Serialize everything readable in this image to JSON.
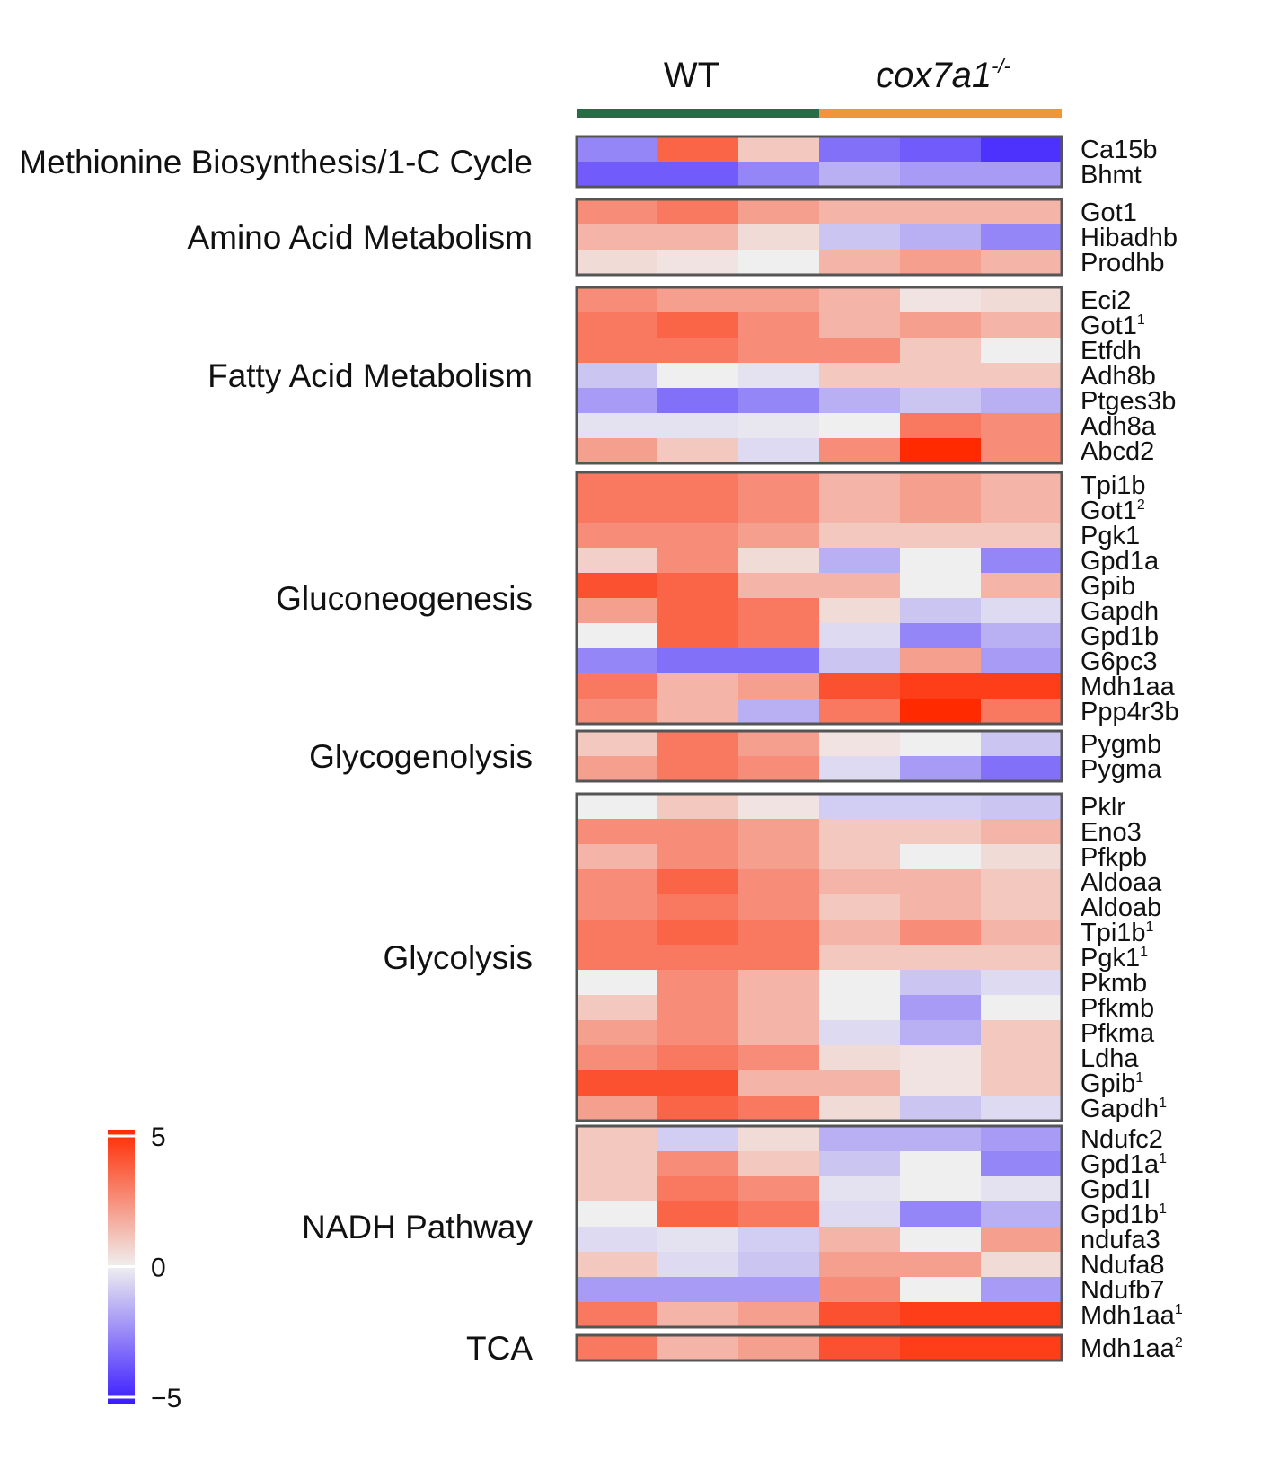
{
  "chart_data": {
    "type": "heatmap",
    "title": "",
    "groups": [
      {
        "label": "WT",
        "italic": false,
        "color": "#2a6b45",
        "columns": 3
      },
      {
        "label": "cox7a1",
        "superscript": "-/-",
        "italic": true,
        "color": "#f0963a",
        "columns": 3
      }
    ],
    "color_scale": {
      "min": -5,
      "mid": 0,
      "max": 5,
      "low_color": "#3b1cff",
      "mid_color": "#efefef",
      "high_color": "#ff2a00",
      "ticks": [
        "5",
        "0",
        "−5"
      ]
    },
    "sections": [
      {
        "name": "Methionine Biosynthesis/1-C Cycle",
        "rows": [
          {
            "gene": "Ca15b",
            "sup": "",
            "values": [
              -2.5,
              3.5,
              1,
              -3,
              -3.5,
              -4.5
            ]
          },
          {
            "gene": "Bhmt",
            "sup": "",
            "values": [
              -3.5,
              -3.5,
              -2.5,
              -1.5,
              -2,
              -2
            ]
          }
        ]
      },
      {
        "name": "Amino Acid Metabolism",
        "rows": [
          {
            "gene": "Got1",
            "sup": "",
            "values": [
              2.5,
              3,
              2,
              1.5,
              1.5,
              1.5
            ]
          },
          {
            "gene": "Hibadhb",
            "sup": "",
            "values": [
              1.5,
              1.5,
              0.5,
              -1,
              -1.5,
              -2.5
            ]
          },
          {
            "gene": "Prodhb",
            "sup": "",
            "values": [
              0.5,
              0.3,
              0,
              1.5,
              2,
              1.5
            ]
          }
        ]
      },
      {
        "name": "Fatty Acid Metabolism",
        "rows": [
          {
            "gene": "Eci2",
            "sup": "",
            "values": [
              2.5,
              2,
              2,
              1.5,
              0.3,
              0.5
            ]
          },
          {
            "gene": "Got1",
            "sup": "1",
            "values": [
              3,
              3.5,
              2.5,
              1.5,
              2,
              1.5
            ]
          },
          {
            "gene": "Etfdh",
            "sup": "",
            "values": [
              3,
              3,
              2.5,
              2.5,
              1,
              0
            ]
          },
          {
            "gene": "Adh8b",
            "sup": "",
            "values": [
              -1,
              0,
              -0.3,
              1,
              1,
              1
            ]
          },
          {
            "gene": "Ptges3b",
            "sup": "",
            "values": [
              -2,
              -3,
              -2.5,
              -1.5,
              -1,
              -1.5
            ]
          },
          {
            "gene": "Adh8a",
            "sup": "",
            "values": [
              -0.3,
              -0.3,
              -0.2,
              0,
              3,
              2.5
            ]
          },
          {
            "gene": "Abcd2",
            "sup": "",
            "values": [
              2,
              1,
              -0.5,
              2.5,
              5,
              2.5
            ]
          }
        ]
      },
      {
        "name": "Gluconeogenesis",
        "rows": [
          {
            "gene": "Tpi1b",
            "sup": "",
            "values": [
              3,
              3,
              2.5,
              1.5,
              2,
              1.5
            ]
          },
          {
            "gene": "Got1",
            "sup": "2",
            "values": [
              3,
              3,
              2.5,
              1.5,
              2,
              1.5
            ]
          },
          {
            "gene": "Pgk1",
            "sup": "",
            "values": [
              2.5,
              2.5,
              2,
              1,
              1,
              1
            ]
          },
          {
            "gene": "Gpd1a",
            "sup": "",
            "values": [
              0.8,
              2.5,
              0.5,
              -1.5,
              0,
              -2.5
            ]
          },
          {
            "gene": "Gpib",
            "sup": "",
            "values": [
              4,
              3.5,
              1.5,
              1.5,
              0,
              1.5
            ]
          },
          {
            "gene": "Gapdh",
            "sup": "",
            "values": [
              2,
              3.5,
              3,
              0.5,
              -1,
              -0.5
            ]
          },
          {
            "gene": "Gpd1b",
            "sup": "",
            "values": [
              0,
              3.5,
              3,
              -0.5,
              -2.5,
              -1.5
            ]
          },
          {
            "gene": "G6pc3",
            "sup": "",
            "values": [
              -2.5,
              -3,
              -3,
              -1,
              2,
              -2
            ]
          },
          {
            "gene": "Mdh1aa",
            "sup": "",
            "values": [
              3,
              1.5,
              2,
              4,
              4.5,
              4.5
            ]
          },
          {
            "gene": "Ppp4r3b",
            "sup": "",
            "values": [
              2.5,
              1.5,
              -1.5,
              3,
              5,
              3
            ]
          }
        ]
      },
      {
        "name": "Glycogenolysis",
        "rows": [
          {
            "gene": "Pygmb",
            "sup": "",
            "values": [
              1,
              3,
              2,
              0.3,
              0,
              -1
            ]
          },
          {
            "gene": "Pygma",
            "sup": "",
            "values": [
              2,
              3,
              2.5,
              -0.5,
              -2,
              -3
            ]
          }
        ]
      },
      {
        "name": "Glycolysis",
        "rows": [
          {
            "gene": "Pklr",
            "sup": "",
            "values": [
              0,
              1,
              0.3,
              -0.8,
              -0.8,
              -1
            ]
          },
          {
            "gene": "Eno3",
            "sup": "",
            "values": [
              2.5,
              2.5,
              2,
              1,
              1,
              1.5
            ]
          },
          {
            "gene": "Pfkpb",
            "sup": "",
            "values": [
              1.5,
              2.5,
              2,
              1,
              0,
              0.5
            ]
          },
          {
            "gene": "Aldoaa",
            "sup": "",
            "values": [
              2.5,
              3.5,
              2.5,
              1.5,
              1.5,
              1
            ]
          },
          {
            "gene": "Aldoab",
            "sup": "",
            "values": [
              2.5,
              3,
              2.5,
              1,
              1.5,
              1
            ]
          },
          {
            "gene": "Tpi1b",
            "sup": "1",
            "values": [
              3,
              3.5,
              3,
              1.5,
              2.5,
              1.5
            ]
          },
          {
            "gene": "Pgk1",
            "sup": "1",
            "values": [
              3,
              3,
              3,
              1,
              1,
              1
            ]
          },
          {
            "gene": "Pkmb",
            "sup": "",
            "values": [
              0,
              2.5,
              1.5,
              0,
              -1,
              -0.5
            ]
          },
          {
            "gene": "Pfkmb",
            "sup": "",
            "values": [
              1,
              2.5,
              1.5,
              0,
              -2,
              0
            ]
          },
          {
            "gene": "Pfkma",
            "sup": "",
            "values": [
              2,
              2.5,
              1.5,
              -0.5,
              -1.5,
              1
            ]
          },
          {
            "gene": "Ldha",
            "sup": "",
            "values": [
              2.5,
              3,
              2.5,
              0.5,
              0.3,
              1
            ]
          },
          {
            "gene": "Gpib",
            "sup": "1",
            "values": [
              4,
              4,
              1.5,
              1.5,
              0.3,
              1
            ]
          },
          {
            "gene": "Gapdh",
            "sup": "1",
            "values": [
              2,
              3.5,
              3,
              0.5,
              -1,
              -0.5
            ]
          }
        ]
      },
      {
        "name": "NADH Pathway",
        "rows": [
          {
            "gene": "Ndufc2",
            "sup": "",
            "values": [
              1,
              -0.8,
              0.5,
              -1.5,
              -1.5,
              -2
            ]
          },
          {
            "gene": "Gpd1a",
            "sup": "1",
            "values": [
              1,
              2.5,
              1,
              -1,
              0,
              -2.5
            ]
          },
          {
            "gene": "Gpd1l",
            "sup": "",
            "values": [
              1,
              3,
              2.5,
              -0.3,
              0,
              -0.3
            ]
          },
          {
            "gene": "Gpd1b",
            "sup": "1",
            "values": [
              0,
              3.5,
              3,
              -0.5,
              -2.5,
              -1.5
            ]
          },
          {
            "gene": "ndufa3",
            "sup": "",
            "values": [
              -0.5,
              -0.3,
              -0.8,
              1.5,
              0,
              2
            ]
          },
          {
            "gene": "Ndufa8",
            "sup": "",
            "values": [
              1,
              -0.5,
              -1,
              2,
              2,
              0.5
            ]
          },
          {
            "gene": "Ndufb7",
            "sup": "",
            "values": [
              -2,
              -2,
              -2,
              2.5,
              0,
              -2
            ]
          },
          {
            "gene": "Mdh1aa",
            "sup": "1",
            "values": [
              3,
              1.5,
              2,
              4,
              4.5,
              4.5
            ]
          }
        ]
      },
      {
        "name": "TCA",
        "rows": [
          {
            "gene": "Mdh1aa",
            "sup": "2",
            "values": [
              3,
              1.5,
              2,
              4,
              4.5,
              4.5
            ]
          }
        ]
      }
    ]
  }
}
